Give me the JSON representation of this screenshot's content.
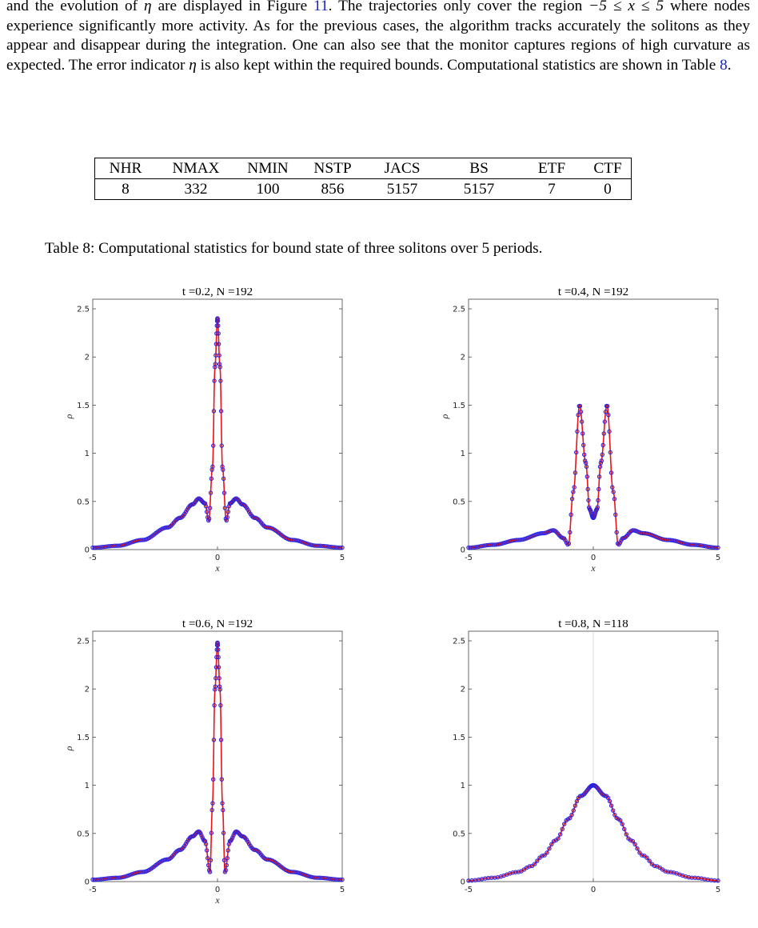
{
  "paragraph": {
    "t1": "and the evolution of ",
    "eta1": "η",
    "t2": " are displayed in Figure ",
    "fig_ref": "11",
    "t3": ". The trajectories only cover the region ",
    "range": "−5 ≤ x ≤ 5",
    "t4": " where nodes experience significantly more activity. As for the previous cases, the algorithm tracks accurately the solitons as they appear and disappear during the integration. One can also see that the monitor captures regions of high curvature as expected. The error indicator ",
    "eta2": "η",
    "t5": " is also kept within the required bounds. Computational statistics are shown in Table ",
    "table_ref": "8",
    "t6": "."
  },
  "table": {
    "headers": [
      "NHR",
      "NMAX",
      "NMIN",
      "NSTP",
      "JACS",
      "BS",
      "ETF",
      "CTF"
    ],
    "values": [
      "8",
      "332",
      "100",
      "856",
      "5157",
      "5157",
      "7",
      "0"
    ]
  },
  "caption": "Table 8: Computational statistics for bound state of three solitons over 5 periods.",
  "colors": {
    "curve": "#e8141b",
    "markers": "#2323e6",
    "link": "#1a24c8"
  },
  "chart_data": [
    {
      "type": "line",
      "title": "t =0.2, N =192",
      "xlabel": "x",
      "ylabel": "ρ",
      "xlim": [
        -5,
        5
      ],
      "ylim": [
        0,
        2.6
      ],
      "xticks": [
        "-5",
        "0",
        "5"
      ],
      "yticks": [
        "0",
        "0.5",
        "1",
        "1.5",
        "2",
        "2.5"
      ],
      "series": [
        {
          "x": [
            -5,
            -4,
            -3,
            -2,
            -1.5,
            -1,
            -0.75,
            -0.5,
            -0.35,
            -0.2,
            -0.1,
            0,
            0.1,
            0.2,
            0.35,
            0.5,
            0.75,
            1,
            1.5,
            2,
            3,
            4,
            5
          ],
          "y": [
            0.02,
            0.04,
            0.1,
            0.23,
            0.33,
            0.47,
            0.53,
            0.48,
            0.3,
            0.85,
            1.9,
            2.4,
            1.9,
            0.85,
            0.3,
            0.48,
            0.53,
            0.47,
            0.33,
            0.23,
            0.1,
            0.04,
            0.02
          ]
        }
      ],
      "markers": 192
    },
    {
      "type": "line",
      "title": "t =0.4, N =192",
      "xlabel": "x",
      "ylabel": "ρ",
      "xlim": [
        -5,
        5
      ],
      "ylim": [
        0,
        2.6
      ],
      "xticks": [
        "-5",
        "0",
        "5"
      ],
      "yticks": [
        "0",
        "0.5",
        "1",
        "1.5",
        "2",
        "2.5"
      ],
      "series": [
        {
          "x": [
            -5,
            -4,
            -3,
            -2,
            -1.6,
            -1.2,
            -1.0,
            -0.8,
            -0.55,
            -0.3,
            -0.15,
            0,
            0.15,
            0.3,
            0.55,
            0.8,
            1.0,
            1.2,
            1.6,
            2,
            3,
            4,
            5
          ],
          "y": [
            0.02,
            0.05,
            0.1,
            0.17,
            0.2,
            0.12,
            0.05,
            0.6,
            1.5,
            0.9,
            0.42,
            0.33,
            0.42,
            0.9,
            1.5,
            0.6,
            0.05,
            0.12,
            0.2,
            0.17,
            0.1,
            0.05,
            0.02
          ]
        }
      ],
      "markers": 192
    },
    {
      "type": "line",
      "title": "t =0.6, N =192",
      "xlabel": "x",
      "ylabel": "ρ",
      "xlim": [
        -5,
        5
      ],
      "ylim": [
        0,
        2.6
      ],
      "xticks": [
        "-5",
        "0",
        "5"
      ],
      "yticks": [
        "0",
        "0.5",
        "1",
        "1.5",
        "2",
        "2.5"
      ],
      "series": [
        {
          "x": [
            -5,
            -4,
            -3,
            -2,
            -1.5,
            -1,
            -0.75,
            -0.5,
            -0.3,
            -0.2,
            -0.1,
            0,
            0.1,
            0.2,
            0.3,
            0.5,
            0.75,
            1,
            1.5,
            2,
            3,
            4,
            5
          ],
          "y": [
            0.02,
            0.04,
            0.1,
            0.23,
            0.33,
            0.47,
            0.52,
            0.42,
            0.1,
            0.8,
            2.0,
            2.48,
            2.0,
            0.8,
            0.1,
            0.42,
            0.52,
            0.47,
            0.33,
            0.23,
            0.1,
            0.04,
            0.02
          ]
        }
      ],
      "markers": 192
    },
    {
      "type": "line",
      "title": "t =0.8, N =118",
      "xlabel": "",
      "ylabel": "",
      "xlim": [
        -5,
        5
      ],
      "ylim": [
        0,
        2.6
      ],
      "xticks": [
        "-5",
        "0",
        "5"
      ],
      "yticks": [
        "0",
        "0.5",
        "1",
        "1.5",
        "2",
        "2.5"
      ],
      "series": [
        {
          "x": [
            -5,
            -4,
            -3,
            -2.5,
            -2,
            -1.5,
            -1,
            -0.5,
            0,
            0.5,
            1,
            1.5,
            2,
            2.5,
            3,
            4,
            5
          ],
          "y": [
            0.01,
            0.04,
            0.1,
            0.16,
            0.27,
            0.43,
            0.65,
            0.89,
            1.0,
            0.89,
            0.65,
            0.43,
            0.27,
            0.16,
            0.1,
            0.04,
            0.01
          ]
        }
      ],
      "markers": 118
    }
  ]
}
